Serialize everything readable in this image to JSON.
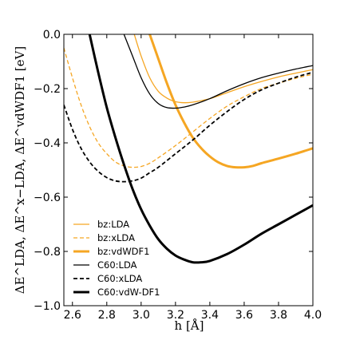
{
  "chart_data": {
    "type": "line",
    "xlabel": "h [Å]",
    "ylabel": "ΔE^LDA, ΔE^x−LDA, ΔE^vdWDF1 [eV]",
    "xlim": [
      2.55,
      4.0
    ],
    "ylim": [
      -1.0,
      0.0
    ],
    "xticks": [
      2.6,
      2.8,
      3.0,
      3.2,
      3.4,
      3.6,
      3.8,
      4.0
    ],
    "xtick_labels": [
      "2.6",
      "2.8",
      "3.0",
      "3.2",
      "3.4",
      "3.6",
      "3.8",
      "4.0"
    ],
    "yticks": [
      -1.0,
      -0.8,
      -0.6,
      -0.4,
      -0.2,
      0.0
    ],
    "ytick_labels": [
      "−1.0",
      "−0.8",
      "−0.6",
      "−0.4",
      "−0.2",
      "0.0"
    ],
    "legend_position": "lower-left",
    "grid": false,
    "series": [
      {
        "name": "bz:LDA",
        "color": "#f5a623",
        "style": "solid",
        "weight": "thin",
        "x": [
          2.96,
          3.0,
          3.05,
          3.1,
          3.15,
          3.2,
          3.25,
          3.3,
          3.4,
          3.5,
          3.6,
          3.7,
          3.8,
          3.9,
          4.0
        ],
        "y": [
          0.0,
          -0.08,
          -0.16,
          -0.21,
          -0.235,
          -0.248,
          -0.252,
          -0.25,
          -0.237,
          -0.215,
          -0.193,
          -0.174,
          -0.157,
          -0.143,
          -0.13
        ]
      },
      {
        "name": "bz:xLDA",
        "color": "#f5a623",
        "style": "dashed",
        "weight": "thin",
        "x": [
          2.55,
          2.6,
          2.65,
          2.7,
          2.75,
          2.8,
          2.85,
          2.9,
          2.95,
          3.0,
          3.05,
          3.1,
          3.2,
          3.3,
          3.4,
          3.5,
          3.6,
          3.7,
          3.8,
          3.9,
          4.0
        ],
        "y": [
          -0.05,
          -0.16,
          -0.26,
          -0.34,
          -0.4,
          -0.44,
          -0.47,
          -0.485,
          -0.49,
          -0.487,
          -0.475,
          -0.455,
          -0.41,
          -0.36,
          -0.31,
          -0.265,
          -0.23,
          -0.2,
          -0.18,
          -0.162,
          -0.147
        ]
      },
      {
        "name": "bz:vdWDF1",
        "color": "#f5a623",
        "style": "solid",
        "weight": "thick",
        "x": [
          3.05,
          3.1,
          3.15,
          3.2,
          3.25,
          3.3,
          3.35,
          3.4,
          3.45,
          3.5,
          3.55,
          3.6,
          3.65,
          3.7,
          3.8,
          3.9,
          4.0
        ],
        "y": [
          0.0,
          -0.09,
          -0.18,
          -0.26,
          -0.325,
          -0.38,
          -0.42,
          -0.45,
          -0.472,
          -0.485,
          -0.49,
          -0.49,
          -0.485,
          -0.475,
          -0.458,
          -0.44,
          -0.42
        ]
      },
      {
        "name": "C60:LDA",
        "color": "#000000",
        "style": "solid",
        "weight": "thin",
        "x": [
          2.9,
          2.95,
          3.0,
          3.05,
          3.1,
          3.15,
          3.2,
          3.25,
          3.3,
          3.4,
          3.5,
          3.6,
          3.7,
          3.8,
          3.9,
          4.0
        ],
        "y": [
          0.0,
          -0.08,
          -0.16,
          -0.22,
          -0.255,
          -0.27,
          -0.272,
          -0.268,
          -0.26,
          -0.237,
          -0.208,
          -0.182,
          -0.16,
          -0.143,
          -0.128,
          -0.115
        ]
      },
      {
        "name": "C60:xLDA",
        "color": "#000000",
        "style": "dashed",
        "weight": "medium",
        "x": [
          2.55,
          2.6,
          2.65,
          2.7,
          2.75,
          2.8,
          2.85,
          2.9,
          2.95,
          3.0,
          3.05,
          3.1,
          3.2,
          3.3,
          3.4,
          3.5,
          3.6,
          3.7,
          3.8,
          3.9,
          4.0
        ],
        "y": [
          -0.26,
          -0.35,
          -0.42,
          -0.47,
          -0.505,
          -0.528,
          -0.54,
          -0.543,
          -0.54,
          -0.53,
          -0.51,
          -0.49,
          -0.44,
          -0.39,
          -0.335,
          -0.285,
          -0.24,
          -0.205,
          -0.18,
          -0.158,
          -0.14
        ]
      },
      {
        "name": "C60:vdW-DF1",
        "color": "#000000",
        "style": "solid",
        "weight": "thick",
        "x": [
          2.7,
          2.75,
          2.8,
          2.85,
          2.9,
          2.95,
          3.0,
          3.05,
          3.1,
          3.15,
          3.2,
          3.25,
          3.3,
          3.35,
          3.4,
          3.5,
          3.6,
          3.7,
          3.8,
          3.9,
          4.0
        ],
        "y": [
          0.0,
          -0.14,
          -0.27,
          -0.38,
          -0.48,
          -0.57,
          -0.645,
          -0.705,
          -0.755,
          -0.79,
          -0.815,
          -0.83,
          -0.84,
          -0.84,
          -0.835,
          -0.81,
          -0.775,
          -0.735,
          -0.7,
          -0.665,
          -0.63
        ]
      }
    ]
  }
}
